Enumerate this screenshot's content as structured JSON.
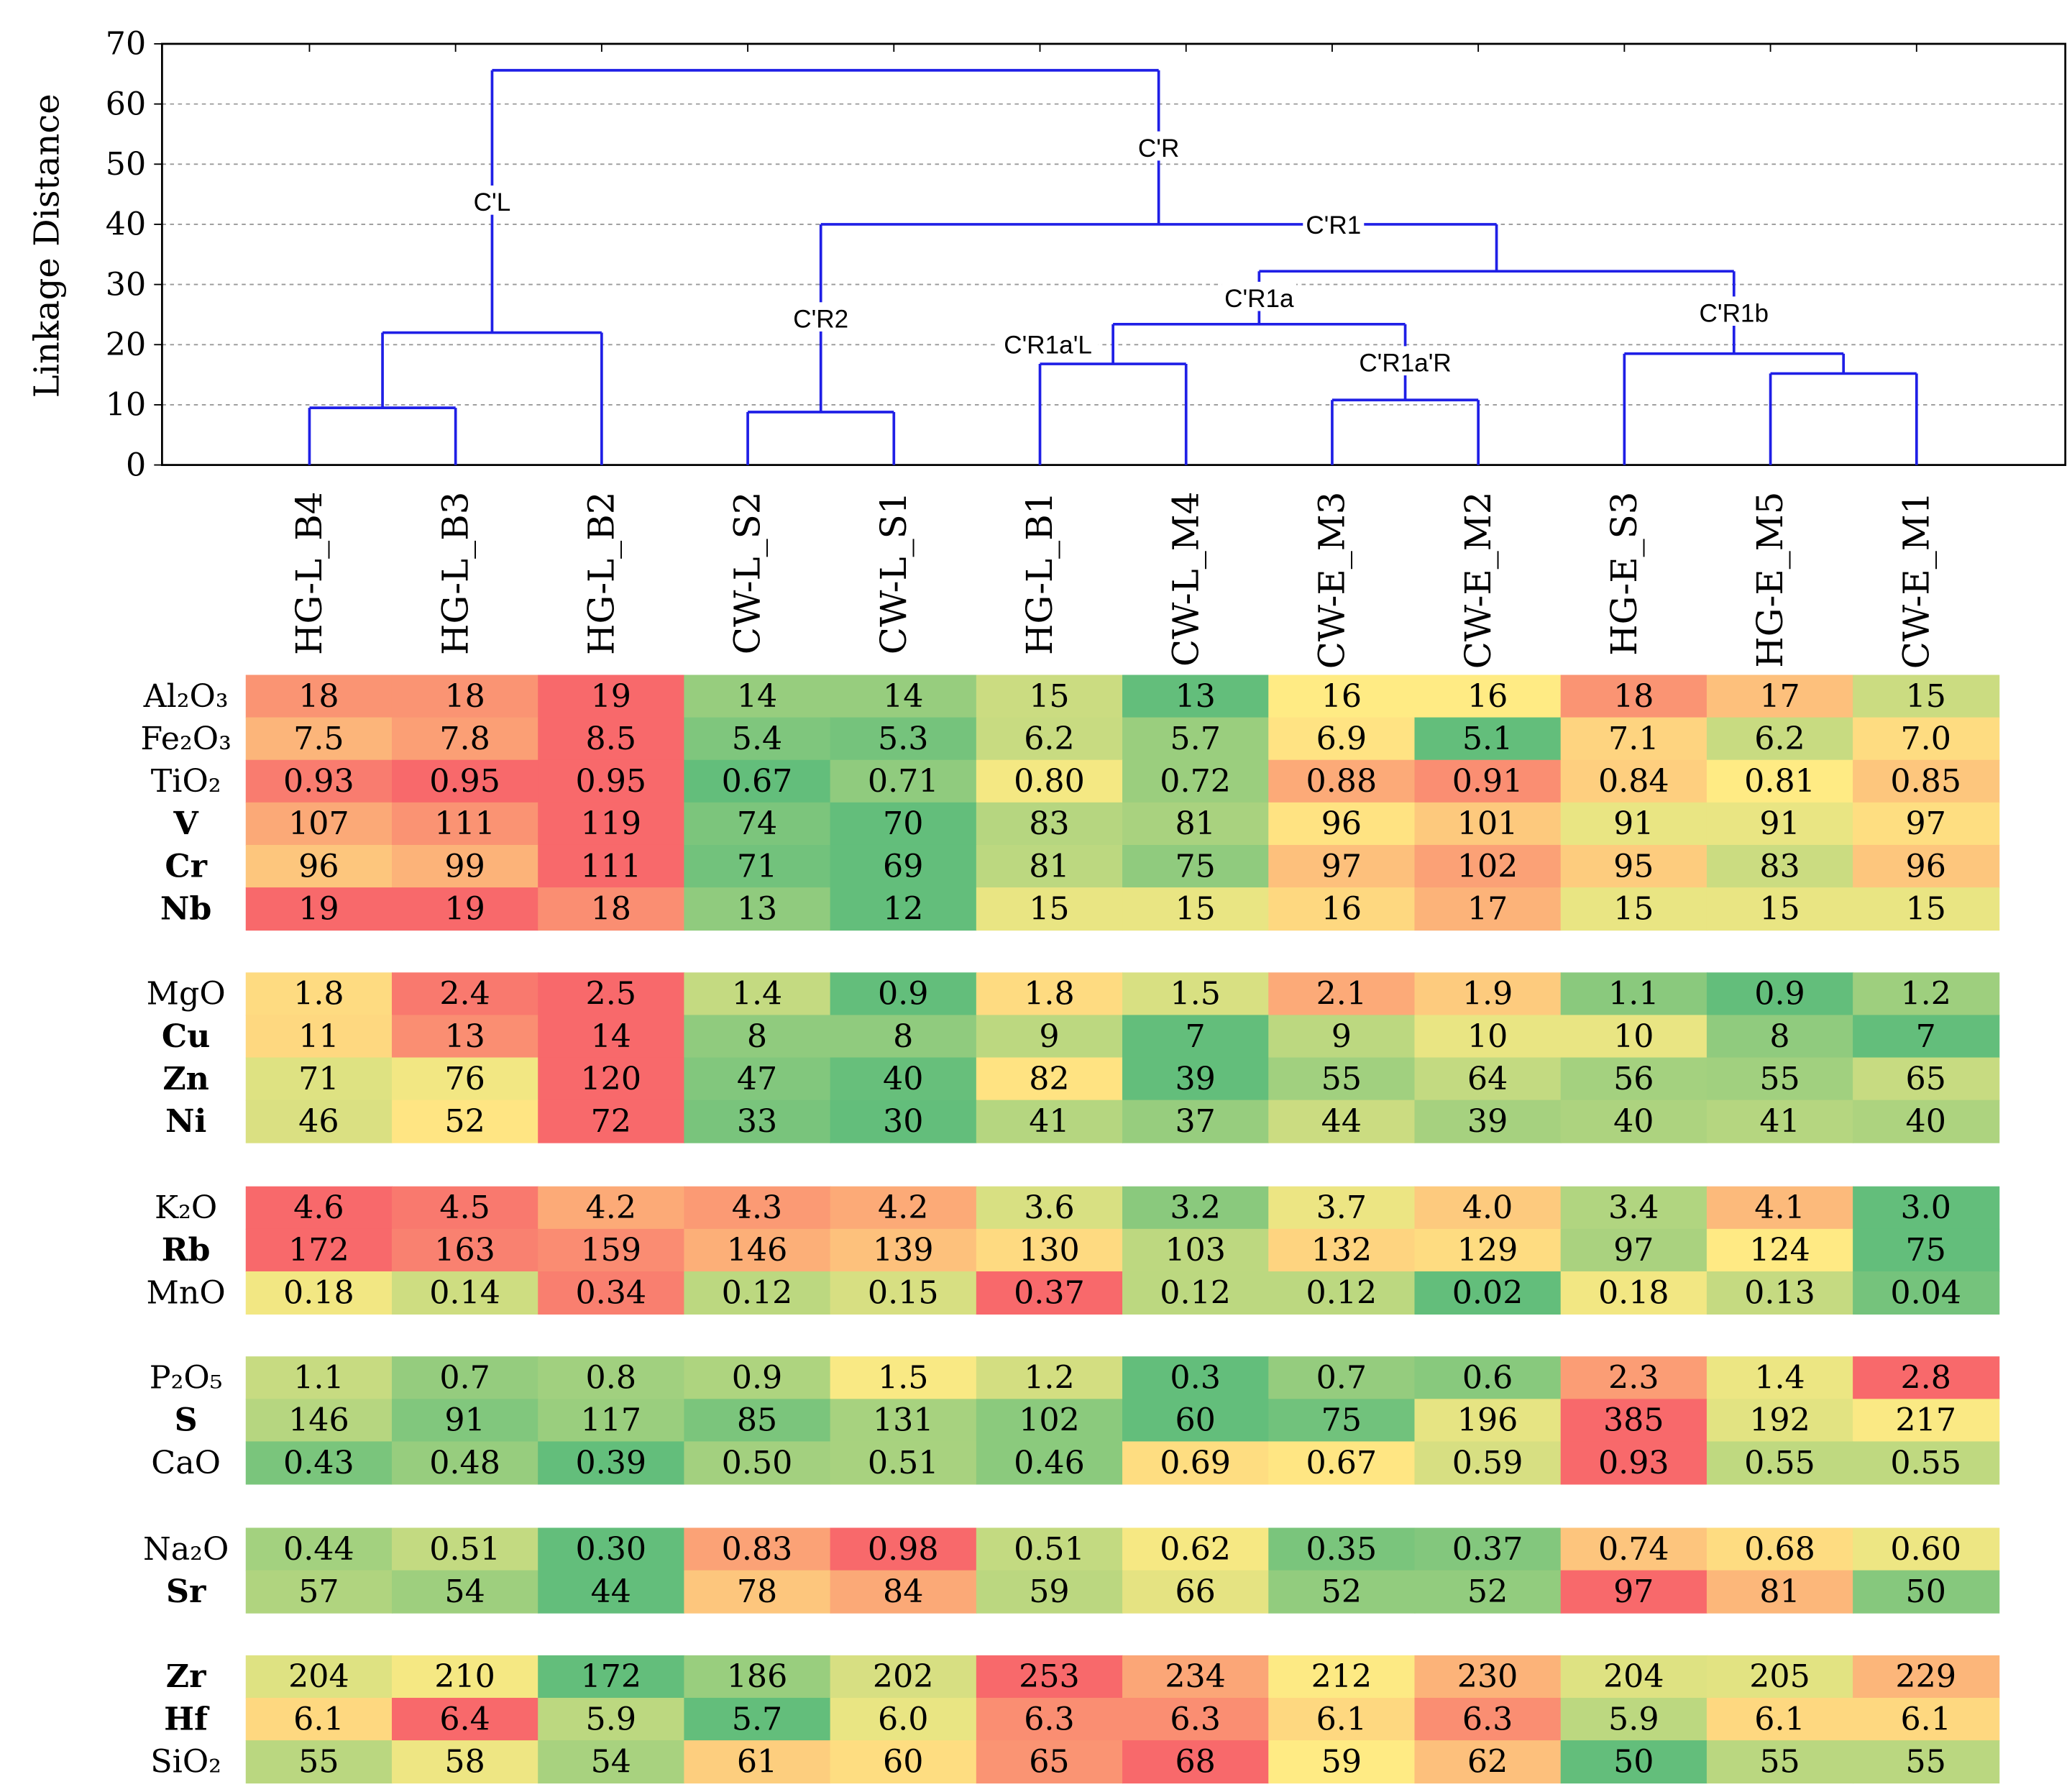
{
  "chart_data": [
    {
      "type": "dendrogram",
      "ylabel": "Linkage Distance",
      "ylim": [
        0,
        70
      ],
      "yticks": [
        0,
        10,
        20,
        30,
        40,
        50,
        60,
        70
      ],
      "grid": true,
      "line_color": "#1f1fe6",
      "leaves": [
        "HG-L_B4",
        "HG-L_B3",
        "HG-L_B2",
        "CW-L_S2",
        "CW-L_S1",
        "HG-L_B1",
        "CW-L_M4",
        "CW-E_M3",
        "CW-E_M2",
        "HG-E_S3",
        "HG-E_M5",
        "CW-E_M1"
      ],
      "clusters": [
        {
          "id": 12,
          "children": [
            0,
            1
          ],
          "height": 9.5,
          "label": ""
        },
        {
          "id": 13,
          "children": [
            12,
            2
          ],
          "height": 22.0,
          "label": "C'L"
        },
        {
          "id": 14,
          "children": [
            3,
            4
          ],
          "height": 8.8,
          "label": "C'R2"
        },
        {
          "id": 15,
          "children": [
            5,
            6
          ],
          "height": 16.8,
          "label": "C'R1a'L"
        },
        {
          "id": 16,
          "children": [
            7,
            8
          ],
          "height": 10.8,
          "label": "C'R1a'R"
        },
        {
          "id": 17,
          "children": [
            15,
            16
          ],
          "height": 23.4,
          "label": "C'R1a"
        },
        {
          "id": 18,
          "children": [
            10,
            11
          ],
          "height": 15.2,
          "label": ""
        },
        {
          "id": 19,
          "children": [
            9,
            18
          ],
          "height": 18.5,
          "label": "C'R1b"
        },
        {
          "id": 20,
          "children": [
            17,
            19
          ],
          "height": 32.2,
          "label": "C'R1"
        },
        {
          "id": 21,
          "children": [
            14,
            20
          ],
          "height": 40.0,
          "label": "C'R"
        },
        {
          "id": 22,
          "children": [
            13,
            21
          ],
          "height": 65.6,
          "label": ""
        }
      ]
    },
    {
      "type": "heatmap",
      "color_scale": {
        "low": "#63be7b",
        "mid": "#ffeb84",
        "high": "#f8696b",
        "mode": "per-row min-max"
      },
      "groups": [
        {
          "rows": [
            {
              "label": "Al₂O₃",
              "bold": false,
              "values": [
                "18",
                "18",
                "19",
                "14",
                "14",
                "15",
                "13",
                "16",
                "16",
                "18",
                "17",
                "15"
              ]
            },
            {
              "label": "Fe₂O₃",
              "bold": false,
              "values": [
                "7.5",
                "7.8",
                "8.5",
                "5.4",
                "5.3",
                "6.2",
                "5.7",
                "6.9",
                "5.1",
                "7.1",
                "6.2",
                "7.0"
              ]
            },
            {
              "label": "TiO₂",
              "bold": false,
              "values": [
                "0.93",
                "0.95",
                "0.95",
                "0.67",
                "0.71",
                "0.80",
                "0.72",
                "0.88",
                "0.91",
                "0.84",
                "0.81",
                "0.85"
              ]
            },
            {
              "label": "V",
              "bold": true,
              "values": [
                "107",
                "111",
                "119",
                "74",
                "70",
                "83",
                "81",
                "96",
                "101",
                "91",
                "91",
                "97"
              ]
            },
            {
              "label": "Cr",
              "bold": true,
              "values": [
                "96",
                "99",
                "111",
                "71",
                "69",
                "81",
                "75",
                "97",
                "102",
                "95",
                "83",
                "96"
              ]
            },
            {
              "label": "Nb",
              "bold": true,
              "values": [
                "19",
                "19",
                "18",
                "13",
                "12",
                "15",
                "15",
                "16",
                "17",
                "15",
                "15",
                "15"
              ]
            }
          ]
        },
        {
          "rows": [
            {
              "label": "MgO",
              "bold": false,
              "values": [
                "1.8",
                "2.4",
                "2.5",
                "1.4",
                "0.9",
                "1.8",
                "1.5",
                "2.1",
                "1.9",
                "1.1",
                "0.9",
                "1.2"
              ]
            },
            {
              "label": "Cu",
              "bold": true,
              "values": [
                "11",
                "13",
                "14",
                "8",
                "8",
                "9",
                "7",
                "9",
                "10",
                "10",
                "8",
                "7"
              ]
            },
            {
              "label": "Zn",
              "bold": true,
              "values": [
                "71",
                "76",
                "120",
                "47",
                "40",
                "82",
                "39",
                "55",
                "64",
                "56",
                "55",
                "65"
              ]
            },
            {
              "label": "Ni",
              "bold": true,
              "values": [
                "46",
                "52",
                "72",
                "33",
                "30",
                "41",
                "37",
                "44",
                "39",
                "40",
                "41",
                "40"
              ]
            }
          ]
        },
        {
          "rows": [
            {
              "label": "K₂O",
              "bold": false,
              "values": [
                "4.6",
                "4.5",
                "4.2",
                "4.3",
                "4.2",
                "3.6",
                "3.2",
                "3.7",
                "4.0",
                "3.4",
                "4.1",
                "3.0"
              ]
            },
            {
              "label": "Rb",
              "bold": true,
              "values": [
                "172",
                "163",
                "159",
                "146",
                "139",
                "130",
                "103",
                "132",
                "129",
                "97",
                "124",
                "75"
              ]
            },
            {
              "label": "MnO",
              "bold": false,
              "values": [
                "0.18",
                "0.14",
                "0.34",
                "0.12",
                "0.15",
                "0.37",
                "0.12",
                "0.12",
                "0.02",
                "0.18",
                "0.13",
                "0.04"
              ]
            }
          ]
        },
        {
          "rows": [
            {
              "label": "P₂O₅",
              "bold": false,
              "values": [
                "1.1",
                "0.7",
                "0.8",
                "0.9",
                "1.5",
                "1.2",
                "0.3",
                "0.7",
                "0.6",
                "2.3",
                "1.4",
                "2.8"
              ]
            },
            {
              "label": "S",
              "bold": true,
              "values": [
                "146",
                "91",
                "117",
                "85",
                "131",
                "102",
                "60",
                "75",
                "196",
                "385",
                "192",
                "217"
              ]
            },
            {
              "label": "CaO",
              "bold": false,
              "values": [
                "0.43",
                "0.48",
                "0.39",
                "0.50",
                "0.51",
                "0.46",
                "0.69",
                "0.67",
                "0.59",
                "0.93",
                "0.55",
                "0.55"
              ]
            }
          ]
        },
        {
          "rows": [
            {
              "label": "Na₂O",
              "bold": false,
              "values": [
                "0.44",
                "0.51",
                "0.30",
                "0.83",
                "0.98",
                "0.51",
                "0.62",
                "0.35",
                "0.37",
                "0.74",
                "0.68",
                "0.60"
              ]
            },
            {
              "label": "Sr",
              "bold": true,
              "values": [
                "57",
                "54",
                "44",
                "78",
                "84",
                "59",
                "66",
                "52",
                "52",
                "97",
                "81",
                "50"
              ]
            }
          ]
        },
        {
          "rows": [
            {
              "label": "Zr",
              "bold": true,
              "values": [
                "204",
                "210",
                "172",
                "186",
                "202",
                "253",
                "234",
                "212",
                "230",
                "204",
                "205",
                "229"
              ]
            },
            {
              "label": "Hf",
              "bold": true,
              "values": [
                "6.1",
                "6.4",
                "5.9",
                "5.7",
                "6.0",
                "6.3",
                "6.3",
                "6.1",
                "6.3",
                "5.9",
                "6.1",
                "6.1"
              ]
            },
            {
              "label": "SiO₂",
              "bold": false,
              "values": [
                "55",
                "58",
                "54",
                "61",
                "60",
                "65",
                "68",
                "59",
                "62",
                "50",
                "55",
                "55"
              ]
            }
          ]
        }
      ]
    }
  ]
}
